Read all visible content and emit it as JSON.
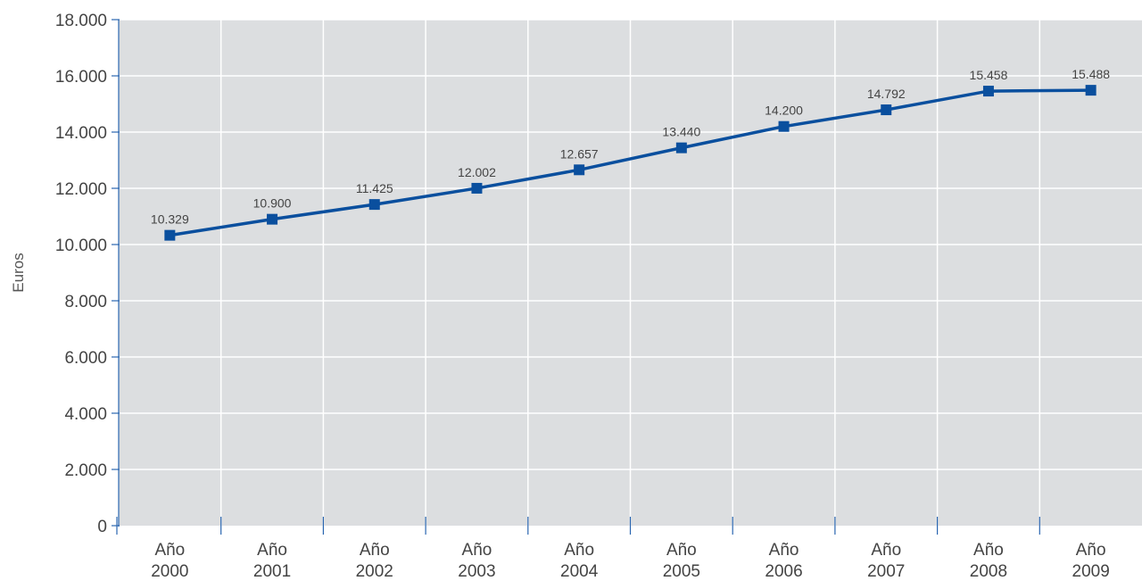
{
  "chart_data": {
    "type": "line",
    "title": "",
    "xlabel": "",
    "ylabel": "Euros",
    "ylim": [
      0,
      18000
    ],
    "yticks": [
      "0",
      "2.000",
      "4.000",
      "6.000",
      "8.000",
      "10.000",
      "12.000",
      "14.000",
      "16.000",
      "18.000"
    ],
    "grid": true,
    "legend": "none",
    "categories": [
      [
        "Año",
        "2000"
      ],
      [
        "Año",
        "2001"
      ],
      [
        "Año",
        "2002"
      ],
      [
        "Año",
        "2003"
      ],
      [
        "Año",
        "2004"
      ],
      [
        "Año",
        "2005"
      ],
      [
        "Año",
        "2006"
      ],
      [
        "Año",
        "2007"
      ],
      [
        "Año",
        "2008"
      ],
      [
        "Año",
        "2009"
      ]
    ],
    "series": [
      {
        "values": [
          10329,
          10900,
          11425,
          12002,
          12657,
          13440,
          14200,
          14792,
          15458,
          15488
        ],
        "labels": [
          "10.329",
          "10.900",
          "11.425",
          "12.002",
          "12.657",
          "13.440",
          "14.200",
          "14.792",
          "15.458",
          "15.488"
        ],
        "color": "#0a4f9e"
      }
    ],
    "colors": {
      "plot_background": "#dcdee0",
      "gridline": "#ffffff",
      "axis": "#2a66b0",
      "line": "#0a4f9e"
    }
  }
}
